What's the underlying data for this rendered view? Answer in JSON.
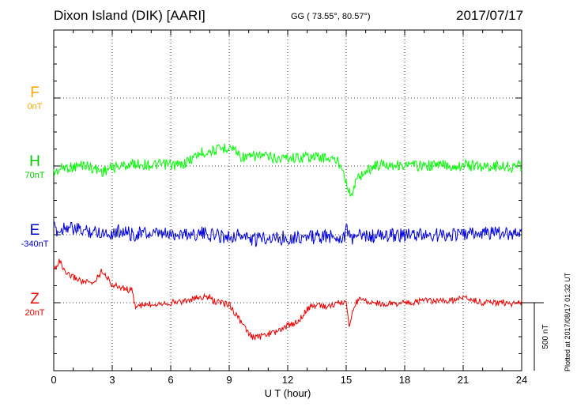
{
  "header": {
    "station": "Dixon Island (DIK)  [AARI]",
    "coords": "GG ( 73.55°,  80.57°)",
    "date": "2017/07/17"
  },
  "components": [
    {
      "key": "F",
      "label": "F",
      "baseline": "0nT",
      "color": "#ffa500"
    },
    {
      "key": "H",
      "label": "H",
      "baseline": "70nT",
      "color": "#00cc00"
    },
    {
      "key": "E",
      "label": "E",
      "baseline": "-340nT",
      "color": "#0000dd"
    },
    {
      "key": "Z",
      "label": "Z",
      "baseline": "20nT",
      "color": "#ee0000"
    }
  ],
  "scale_label": "500 nT",
  "plotted_note": "Plotted at 2017/08/17 01:32 UT",
  "chart_data": {
    "type": "line",
    "title": "Dixon Island (DIK)  [AARI]",
    "xlabel": "U T (hour)",
    "xlim": [
      0,
      24
    ],
    "xticks": [
      0,
      3,
      6,
      9,
      12,
      15,
      18,
      21,
      24
    ],
    "grid": true,
    "series": [
      {
        "name": "H",
        "color": "#00ff00",
        "base_row": 2,
        "x": [
          0,
          0.5,
          1,
          1.5,
          2,
          2.5,
          3,
          3.5,
          4,
          4.5,
          5,
          5.5,
          6,
          6.5,
          7,
          7.5,
          8,
          8.5,
          9,
          9.3,
          9.6,
          10,
          10.5,
          11,
          11.5,
          12,
          12.5,
          13,
          13.5,
          14,
          14.5,
          14.8,
          15,
          15.1,
          15.25,
          15.4,
          15.6,
          15.8,
          16,
          16.5,
          17,
          17.5,
          18,
          18.5,
          19,
          19.5,
          20,
          20.5,
          21,
          21.5,
          22,
          22.5,
          23,
          23.5,
          24
        ],
        "y": [
          -50,
          -10,
          -10,
          10,
          -15,
          -40,
          -10,
          0,
          15,
          15,
          5,
          10,
          10,
          5,
          45,
          95,
          110,
          120,
          145,
          120,
          70,
          60,
          80,
          65,
          55,
          65,
          60,
          70,
          65,
          60,
          40,
          0,
          -110,
          -170,
          -230,
          -150,
          -90,
          -60,
          -40,
          5,
          15,
          10,
          0,
          5,
          0,
          5,
          10,
          -5,
          10,
          0,
          -5,
          0,
          0,
          -10,
          5
        ]
      },
      {
        "name": "E",
        "color": "#0000dd",
        "base_row": 3,
        "x": [
          0,
          0.3,
          0.6,
          1,
          1.5,
          2,
          2.5,
          3,
          3.5,
          4,
          4.5,
          5,
          5.5,
          6,
          6.5,
          7,
          7.5,
          8,
          8.5,
          9,
          9.3,
          9.6,
          10,
          10.4,
          10.7,
          11,
          11.5,
          12,
          12.5,
          13,
          13.5,
          14,
          14.5,
          14.9,
          15.05,
          15.2,
          15.35,
          15.5,
          15.7,
          16,
          16.5,
          17,
          17.5,
          18,
          18.5,
          19,
          19.5,
          20,
          20.5,
          21,
          21.5,
          22,
          22.5,
          23,
          23.5,
          24
        ],
        "y": [
          50,
          20,
          70,
          40,
          30,
          25,
          20,
          10,
          35,
          0,
          15,
          0,
          5,
          0,
          10,
          5,
          10,
          0,
          -5,
          -15,
          0,
          -5,
          -25,
          -45,
          -10,
          -20,
          -25,
          -20,
          -15,
          -20,
          -15,
          -15,
          -10,
          -20,
          60,
          -50,
          -35,
          15,
          -15,
          -10,
          -10,
          -10,
          0,
          0,
          -5,
          0,
          -5,
          0,
          5,
          0,
          10,
          10,
          15,
          5,
          15,
          15
        ]
      },
      {
        "name": "Z",
        "color": "#ee0000",
        "base_row": 4,
        "x": [
          0,
          0.3,
          0.6,
          1,
          1.5,
          2,
          2.5,
          3,
          3.5,
          4,
          4.2,
          4.5,
          5,
          5.5,
          6,
          6.5,
          7,
          7.5,
          8,
          8.2,
          8.6,
          9,
          9.5,
          10,
          10.3,
          10.6,
          11,
          11.5,
          12,
          12.5,
          13,
          13.5,
          14,
          14.5,
          14.8,
          15,
          15.15,
          15.3,
          15.5,
          15.8,
          16,
          16.5,
          17,
          17.5,
          18,
          18.5,
          19,
          19.5,
          20,
          20.5,
          21,
          21.5,
          22,
          22.5,
          23,
          23.5,
          24
        ],
        "y": [
          240,
          310,
          210,
          190,
          155,
          140,
          240,
          130,
          110,
          90,
          -30,
          -20,
          -10,
          0,
          0,
          10,
          20,
          40,
          40,
          10,
          0,
          -10,
          -120,
          -230,
          -260,
          -250,
          -230,
          -210,
          -170,
          -140,
          -50,
          -10,
          -30,
          -5,
          0,
          0,
          -160,
          -80,
          0,
          40,
          10,
          0,
          -10,
          -5,
          0,
          0,
          20,
          10,
          10,
          20,
          40,
          20,
          0,
          0,
          0,
          -5,
          0
        ]
      }
    ]
  }
}
